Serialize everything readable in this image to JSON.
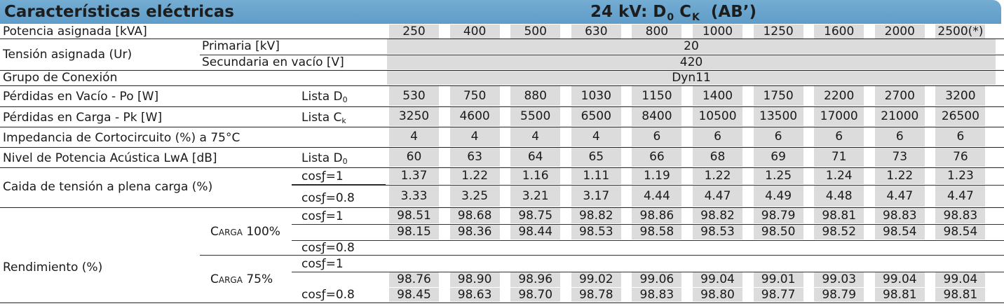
{
  "header": {
    "title": "Características eléctricas",
    "rating_prefix": "24 kV: D",
    "rating_sub0": "0",
    "rating_mid": " C",
    "rating_subk": "K",
    "rating_suffix": "  (AB’)"
  },
  "powers": [
    "250",
    "400",
    "500",
    "630",
    "800",
    "1000",
    "1250",
    "1600",
    "2000",
    "2500(*)"
  ],
  "rows": {
    "potencia": "Potencia asignada [kVA]",
    "tension": "Tensión asignada (Ur)",
    "primaria": "Primaria [kV]",
    "primaria_value": "20",
    "secundaria": "Secundaria en vacío [V]",
    "secundaria_value": "420",
    "grupo": "Grupo de Conexión",
    "grupo_value": "Dyn11",
    "perdidas_vacio": "Pérdidas en Vacío - Po [W]",
    "lista_d": "Lista D",
    "lista_d_sub": "0",
    "perdidas_carga": "Pérdidas en Carga - Pk [W]",
    "lista_c": "Lista C",
    "lista_c_sub": "k",
    "impedancia": "Impedancia de Cortocircuito (%) a 75°C",
    "nivel": "Nivel de Potencia Acústica LwA [dB]",
    "caida": "Caida de tensión a plena carga (%)",
    "cos1": "cosƒ=1",
    "cos08": "cosƒ=0.8",
    "rendimiento": "Rendimiento (%)",
    "carga100": "Carga 100%",
    "carga75": "Carga 75%"
  },
  "values": {
    "po": [
      "530",
      "750",
      "880",
      "1030",
      "1150",
      "1400",
      "1750",
      "2200",
      "2700",
      "3200"
    ],
    "pk": [
      "3250",
      "4600",
      "5500",
      "6500",
      "8400",
      "10500",
      "13500",
      "17000",
      "21000",
      "26500"
    ],
    "imp": [
      "4",
      "4",
      "4",
      "4",
      "6",
      "6",
      "6",
      "6",
      "6",
      "6"
    ],
    "lwa": [
      "60",
      "63",
      "64",
      "65",
      "66",
      "68",
      "69",
      "71",
      "73",
      "76"
    ],
    "caida_cos1": [
      "1.37",
      "1.22",
      "1.16",
      "1.11",
      "1.19",
      "1.22",
      "1.25",
      "1.24",
      "1.22",
      "1.23"
    ],
    "caida_cos08": [
      "3.33",
      "3.25",
      "3.21",
      "3.17",
      "4.44",
      "4.47",
      "4.49",
      "4.48",
      "4.47",
      "4.47"
    ],
    "r100_cos1": [
      "98.51",
      "98.68",
      "98.75",
      "98.82",
      "98.86",
      "98.82",
      "98.79",
      "98.81",
      "98.83",
      "98.83"
    ],
    "r100_cos08": [
      "98.15",
      "98.36",
      "98.44",
      "98.53",
      "98.58",
      "98.53",
      "98.50",
      "98.52",
      "98.54",
      "98.54"
    ],
    "r75_cos1": [
      "98.76",
      "98.90",
      "98.96",
      "99.02",
      "99.06",
      "99.04",
      "99.01",
      "99.03",
      "99.04",
      "99.04"
    ],
    "r75_cos08": [
      "98.45",
      "98.63",
      "98.70",
      "98.78",
      "98.83",
      "98.80",
      "98.77",
      "98.79",
      "98.81",
      "98.81"
    ]
  }
}
